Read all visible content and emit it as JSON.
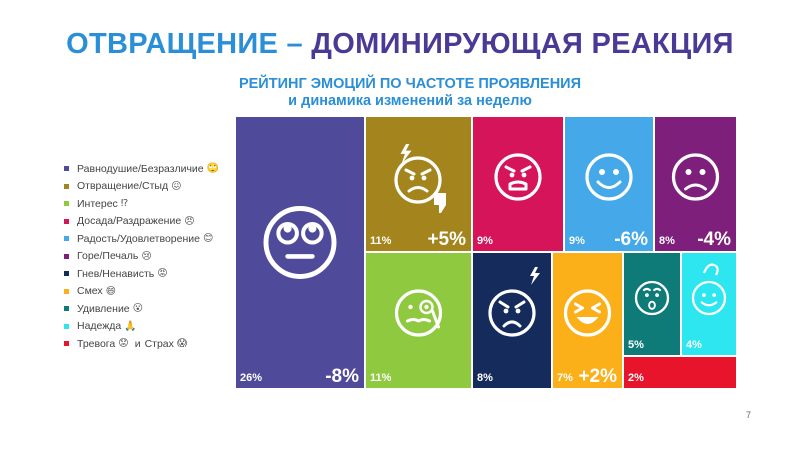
{
  "title": {
    "part1": "ОТВРАЩЕНИЕ –",
    "part2": "ДОМИНИРУЮЩАЯ РЕАКЦИЯ"
  },
  "subtitle": {
    "line1": "РЕЙТИНГ ЭМОЦИЙ ПО ЧАСТОТЕ ПРОЯВЛЕНИЯ",
    "line2": "и динамика изменений за неделю"
  },
  "legend": [
    {
      "label": "Равнодушие/Безразличие",
      "emoji": "🙄",
      "color": "#4f4a9a"
    },
    {
      "label": "Отвращение/Стыд",
      "emoji": "😖",
      "color": "#a4841c"
    },
    {
      "label": "Интерес",
      "emoji": "⁉",
      "color": "#8fc940"
    },
    {
      "label": "Досада/Раздражение",
      "emoji": "😠",
      "color": "#d5145a"
    },
    {
      "label": "Радость/Удовлетворение",
      "emoji": "😊",
      "color": "#45a8e8"
    },
    {
      "label": "Горе/Печаль",
      "emoji": "😢",
      "color": "#7e1f7c"
    },
    {
      "label": "Гнев/Ненависть",
      "emoji": "😡",
      "color": "#142b5c"
    },
    {
      "label": "Смех",
      "emoji": "😄",
      "color": "#fbaf19"
    },
    {
      "label": "Удивление",
      "emoji": "😮",
      "color": "#0e7b78"
    },
    {
      "label": "Надежда",
      "emoji": "🙏",
      "color": "#2ee6f0"
    },
    {
      "label": "Тревога",
      "emoji": "😟",
      "connector": "и",
      "label2": "Страх",
      "emoji2": "😱",
      "color": "#e8142b"
    }
  ],
  "chart_data": {
    "type": "treemap",
    "title": "РЕЙТИНГ ЭМОЦИЙ ПО ЧАСТОТЕ ПРОЯВЛЕНИЯ",
    "subtitle": "и динамика изменений за неделю",
    "cells": [
      {
        "name": "Равнодушие/Безразличие",
        "value": 26,
        "value_label": "26%",
        "change": "-8%",
        "color": "#4f4a9a",
        "icon": "eyeroll-face-icon"
      },
      {
        "name": "Отвращение/Стыд",
        "value": 11,
        "value_label": "11%",
        "change": "+5%",
        "color": "#a4841c",
        "icon": "disgust-face-icon"
      },
      {
        "name": "Досада/Раздражение",
        "value": 9,
        "value_label": "9%",
        "change": "",
        "color": "#d5145a",
        "icon": "annoyed-face-icon"
      },
      {
        "name": "Радость/Удовлетворение",
        "value": 9,
        "value_label": "9%",
        "change": "-6%",
        "color": "#45a8e8",
        "icon": "smile-face-icon"
      },
      {
        "name": "Горе/Печаль",
        "value": 8,
        "value_label": "8%",
        "change": "-4%",
        "color": "#7e1f7c",
        "icon": "sad-face-icon"
      },
      {
        "name": "Интерес",
        "value": 11,
        "value_label": "11%",
        "change": "",
        "color": "#8fc940",
        "icon": "monocle-face-icon"
      },
      {
        "name": "Гнев/Ненависть",
        "value": 8,
        "value_label": "8%",
        "change": "",
        "color": "#142b5c",
        "icon": "angry-face-icon"
      },
      {
        "name": "Смех",
        "value": 7,
        "value_label": "7%",
        "change": "+2%",
        "color": "#fbaf19",
        "icon": "laugh-face-icon"
      },
      {
        "name": "Удивление",
        "value": 5,
        "value_label": "5%",
        "change": "",
        "color": "#0e7b78",
        "icon": "surprised-face-icon"
      },
      {
        "name": "Надежда",
        "value": 4,
        "value_label": "4%",
        "change": "",
        "color": "#2ee6f0",
        "icon": "hopeful-face-icon"
      },
      {
        "name": "Тревога и Страх",
        "value": 2,
        "value_label": "2%",
        "change": "",
        "color": "#e8142b",
        "icon": ""
      }
    ]
  },
  "page_number": "7"
}
